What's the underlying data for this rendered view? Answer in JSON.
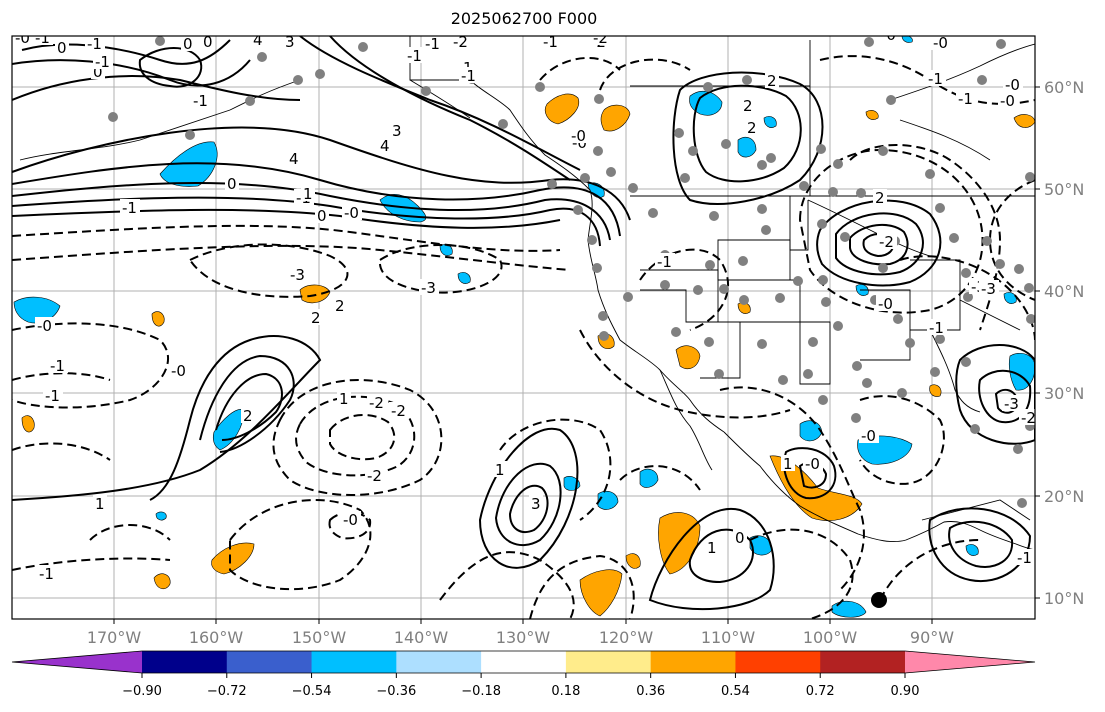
{
  "title": "2025062700 F000",
  "map": {
    "lat_labels": [
      "60°N",
      "50°N",
      "40°N",
      "30°N",
      "20°N",
      "10°N"
    ],
    "lon_labels": [
      "170°W",
      "160°W",
      "150°W",
      "140°W",
      "130°W",
      "120°W",
      "110°W",
      "100°W",
      "90°W"
    ],
    "contour_labels": [
      "0",
      "-1",
      "0",
      "0",
      "3",
      "4",
      "4",
      "-1",
      "-1",
      "0",
      "-0",
      "0",
      "-1",
      "2",
      "2",
      "-0",
      "-0",
      "2",
      "-0",
      "1",
      "-1",
      "2",
      "-2",
      "4",
      "3",
      "-2",
      "-1",
      "-3",
      "2",
      "2",
      "-3",
      "-0",
      "-3",
      "-1",
      "-0",
      "0",
      "2",
      "3",
      "-3",
      "-2",
      "-2",
      "-1",
      "-0",
      "1",
      "-1",
      "-2",
      "-2",
      "-1",
      "-1",
      "1",
      "0",
      "1",
      "-0",
      "-1",
      "-0",
      "-1",
      "-0",
      "-2",
      "-3",
      "1",
      "-1",
      "-0",
      "-0",
      "1",
      "-0",
      "-1",
      "-1",
      "-0",
      "-2",
      "-1",
      "1",
      "-1"
    ]
  },
  "colorbar": {
    "colors": [
      "#9932CC",
      "#00008B",
      "#3A5FCD",
      "#00BFFF",
      "#ADDFFF",
      "#FFFFFF",
      "#FFEC8B",
      "#FFA500",
      "#FF4000",
      "#B22222",
      "#FF88AA"
    ],
    "tick_labels": [
      "−0.90",
      "−0.72",
      "−0.54",
      "−0.36",
      "−0.18",
      "0.18",
      "0.36",
      "0.54",
      "0.72",
      "0.90"
    ]
  }
}
